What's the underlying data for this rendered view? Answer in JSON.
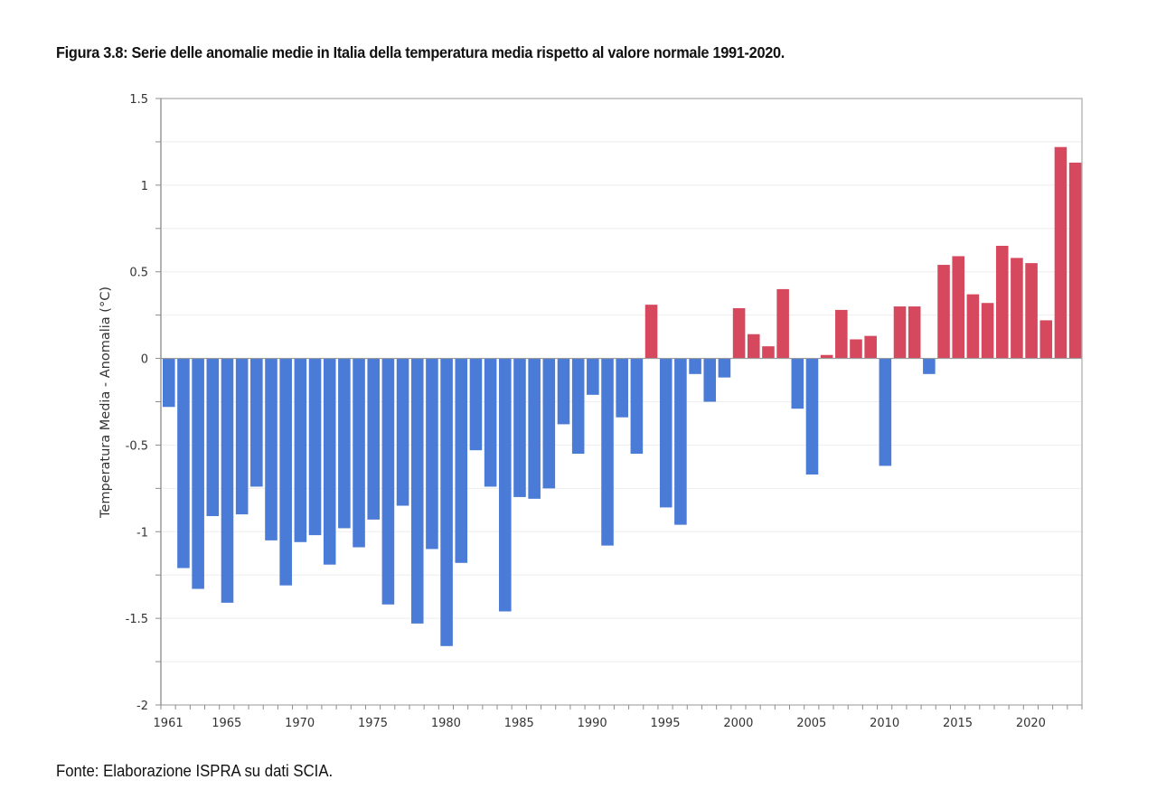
{
  "figure": {
    "title": "Figura 3.8: Serie delle anomalie medie in Italia della temperatura media rispetto al valore normale 1991-2020.",
    "source": "Fonte: Elaborazione ISPRA su dati SCIA."
  },
  "chart_data": {
    "type": "bar",
    "title": "Figura 3.8: Serie delle anomalie medie in Italia della temperatura media rispetto al valore normale 1991-2020.",
    "xlabel": "",
    "ylabel": "Temperatura Media - Anomalia (°C)",
    "ylim": [
      -2,
      1.5
    ],
    "yticks": [
      1.5,
      1,
      0.5,
      0,
      -0.5,
      -1,
      -1.5,
      -2
    ],
    "ytick_labels": [
      "1.5",
      "1",
      "0.5",
      "0",
      "-0.5",
      "-1",
      "-1.5",
      "-2"
    ],
    "xtick_labels": [
      "1961",
      "1965",
      "1970",
      "1975",
      "1980",
      "1985",
      "1990",
      "1995",
      "2000",
      "2005",
      "2010",
      "2015",
      "2020"
    ],
    "grid": true,
    "legend": "none",
    "colors": {
      "positive": "#d6485d",
      "negative": "#4a7bd6"
    },
    "categories": [
      1961,
      1962,
      1963,
      1964,
      1965,
      1966,
      1967,
      1968,
      1969,
      1970,
      1971,
      1972,
      1973,
      1974,
      1975,
      1976,
      1977,
      1978,
      1979,
      1980,
      1981,
      1982,
      1983,
      1984,
      1985,
      1986,
      1987,
      1988,
      1989,
      1990,
      1991,
      1992,
      1993,
      1994,
      1995,
      1996,
      1997,
      1998,
      1999,
      2000,
      2001,
      2002,
      2003,
      2004,
      2005,
      2006,
      2007,
      2008,
      2009,
      2010,
      2011,
      2012,
      2013,
      2014,
      2015,
      2016,
      2017,
      2018,
      2019,
      2020,
      2021,
      2022,
      2023
    ],
    "values": [
      -0.28,
      -1.21,
      -1.33,
      -0.91,
      -1.41,
      -0.9,
      -0.74,
      -1.05,
      -1.31,
      -1.06,
      -1.02,
      -1.19,
      -0.98,
      -1.09,
      -0.93,
      -1.42,
      -0.85,
      -1.53,
      -1.1,
      -1.66,
      -1.18,
      -0.53,
      -0.74,
      -1.46,
      -0.8,
      -0.81,
      -0.75,
      -0.38,
      -0.55,
      -0.21,
      -1.08,
      -0.34,
      -0.55,
      0.31,
      -0.86,
      -0.96,
      -0.09,
      -0.25,
      -0.11,
      0.29,
      0.14,
      0.07,
      0.4,
      -0.29,
      -0.67,
      0.02,
      0.28,
      0.11,
      0.13,
      -0.62,
      0.3,
      0.3,
      -0.09,
      0.54,
      0.59,
      0.37,
      0.32,
      0.65,
      0.58,
      0.55,
      0.22,
      1.22,
      1.13
    ]
  }
}
